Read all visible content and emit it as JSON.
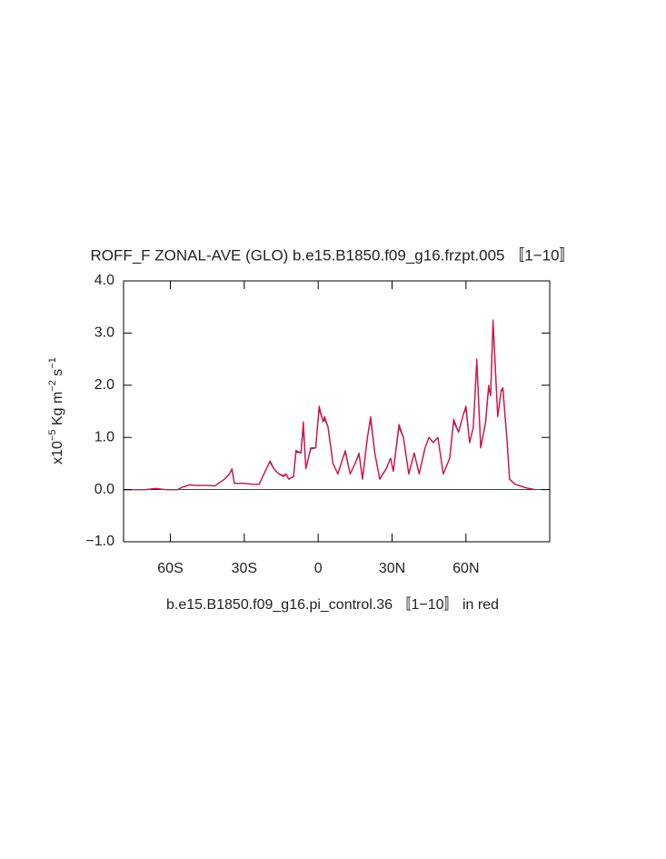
{
  "chart_data": {
    "type": "line",
    "title": "ROFF_F ZONAL-AVE (GLO) b.e15.B1850.f09_g16.frzpt.005 〚1−10〛",
    "y_label": [
      "x10",
      "−5",
      " Kg m",
      "−2",
      " s",
      "−1"
    ],
    "x_label": "b.e15.B1850.f09_g16.pi_control.36 〚1−10〛 in red",
    "x": [
      -79,
      -70,
      -66,
      -62,
      -57,
      -55,
      -52,
      -50,
      -45,
      -42,
      -38,
      -36,
      -35,
      -34,
      -30,
      -26,
      -24,
      -22,
      -20,
      -19.5,
      -18,
      -16,
      -14,
      -13,
      -12,
      -10,
      -9,
      -7,
      -6,
      -5,
      -3,
      -1,
      0.4,
      2,
      2.6,
      4,
      6,
      8,
      10,
      11,
      13,
      15,
      16.6,
      18,
      20,
      21.3,
      23,
      25,
      27.6,
      29.4,
      30.5,
      32.8,
      34.6,
      36.8,
      39,
      41,
      43.4,
      45,
      46.7,
      48.6,
      50.8,
      53.4,
      55,
      57,
      59,
      60,
      61.5,
      63,
      64.4,
      66,
      68,
      69.2,
      70,
      71,
      72.9,
      74.3,
      75,
      76.6,
      77.7,
      80,
      84.7,
      88
    ],
    "series": [
      {
        "color": "#3040d0",
        "values": [
          0,
          0,
          0.02,
          0,
          0,
          0.05,
          0.09,
          0.08,
          0.08,
          0.07,
          0.2,
          0.3,
          0.38,
          0.12,
          0.12,
          0.1,
          0.1,
          0.3,
          0.5,
          0.52,
          0.4,
          0.3,
          0.27,
          0.3,
          0.2,
          0.25,
          0.72,
          0.7,
          1.2,
          0.4,
          0.78,
          0.8,
          1.55,
          1.3,
          1.35,
          1.2,
          0.5,
          0.3,
          0.6,
          0.72,
          0.3,
          0.5,
          0.68,
          0.2,
          1.0,
          1.35,
          0.7,
          0.2,
          0.4,
          0.6,
          0.35,
          1.2,
          1.0,
          0.3,
          0.7,
          0.3,
          0.8,
          1.0,
          0.9,
          1.0,
          0.3,
          0.6,
          1.3,
          1.1,
          1.45,
          1.55,
          0.9,
          1.2,
          2.45,
          0.8,
          1.3,
          1.95,
          1.8,
          3.2,
          1.4,
          1.9,
          1.9,
          1.0,
          0.2,
          0.1,
          0.03,
          0
        ]
      },
      {
        "color": "#e0103a",
        "values": [
          0,
          0,
          0.02,
          0,
          0,
          0.05,
          0.09,
          0.08,
          0.08,
          0.07,
          0.2,
          0.3,
          0.4,
          0.12,
          0.12,
          0.1,
          0.1,
          0.3,
          0.5,
          0.55,
          0.4,
          0.3,
          0.25,
          0.3,
          0.2,
          0.25,
          0.75,
          0.7,
          1.3,
          0.4,
          0.8,
          0.8,
          1.6,
          1.3,
          1.4,
          1.2,
          0.5,
          0.3,
          0.6,
          0.75,
          0.3,
          0.5,
          0.7,
          0.2,
          1.0,
          1.4,
          0.7,
          0.2,
          0.4,
          0.6,
          0.35,
          1.25,
          1.0,
          0.3,
          0.7,
          0.3,
          0.8,
          1.0,
          0.9,
          1.0,
          0.3,
          0.6,
          1.35,
          1.1,
          1.45,
          1.6,
          0.9,
          1.2,
          2.5,
          0.8,
          1.3,
          2.0,
          1.8,
          3.25,
          1.4,
          1.9,
          1.95,
          1.0,
          0.2,
          0.1,
          0.03,
          0
        ]
      }
    ],
    "xlim": [
      -79,
      94
    ],
    "ylim": [
      -1,
      4
    ],
    "xticks": [
      {
        "value": -60,
        "label": "60S"
      },
      {
        "value": -30,
        "label": "30S"
      },
      0,
      {
        "value": 30,
        "label": "30N"
      },
      {
        "value": 60,
        "label": "60N"
      }
    ],
    "yticks": [
      {
        "value": -1,
        "label": "−1.0"
      },
      {
        "value": 0,
        "label": "0.0"
      },
      {
        "value": 1,
        "label": "1.0"
      },
      {
        "value": 2,
        "label": "2.0"
      },
      {
        "value": 3,
        "label": "3.0"
      },
      {
        "value": 4,
        "label": "4.0"
      }
    ],
    "grid": false
  }
}
